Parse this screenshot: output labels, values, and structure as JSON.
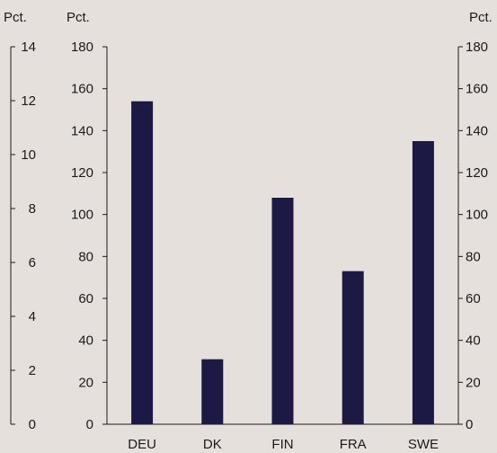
{
  "chart_data": {
    "type": "bar",
    "categories": [
      "DEU",
      "DK",
      "FIN",
      "FRA",
      "SWE"
    ],
    "values": [
      154,
      31,
      108,
      73,
      135
    ],
    "axes": {
      "far_left": {
        "unit_label": "Pct.",
        "ylim": [
          0,
          14
        ],
        "ticks": [
          0,
          2,
          4,
          6,
          8,
          10,
          12,
          14
        ]
      },
      "left": {
        "unit_label": "Pct.",
        "ylim": [
          0,
          180
        ],
        "ticks": [
          0,
          20,
          40,
          60,
          80,
          100,
          120,
          140,
          160,
          180
        ]
      },
      "right": {
        "unit_label": "Pct.",
        "ylim": [
          0,
          180
        ],
        "ticks": [
          0,
          20,
          40,
          60,
          80,
          100,
          120,
          140,
          160,
          180
        ]
      }
    },
    "grid": false,
    "legend": "none",
    "colors": {
      "bar": "#1c1a45",
      "background": "#e6e0dc",
      "axis": "#1a1a1a"
    }
  }
}
